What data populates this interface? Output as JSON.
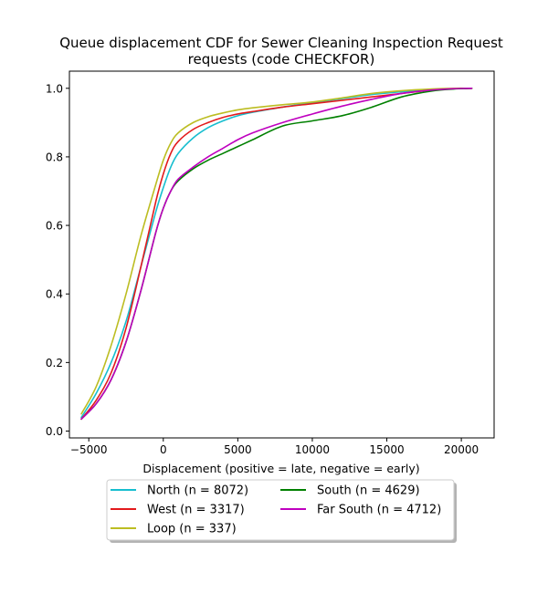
{
  "chart_data": {
    "type": "line",
    "title_lines": [
      "Queue displacement CDF for Sewer Cleaning Inspection Request",
      "requests (code CHECKFOR)"
    ],
    "xlabel": "Displacement (positive = late, negative = early)",
    "ylabel": "",
    "xlim": [
      -6300,
      22200
    ],
    "ylim": [
      -0.02,
      1.05
    ],
    "xticks": [
      -5000,
      0,
      5000,
      10000,
      15000,
      20000
    ],
    "yticks": [
      0.0,
      0.2,
      0.4,
      0.6,
      0.8,
      1.0
    ],
    "xtick_labels": [
      "−5000",
      "0",
      "5000",
      "10000",
      "15000",
      "20000"
    ],
    "ytick_labels": [
      "0.0",
      "0.2",
      "0.4",
      "0.6",
      "0.8",
      "1.0"
    ],
    "grid": false,
    "legend_position": "below plot, two columns",
    "series": [
      {
        "name": "North (n = 8072)",
        "color": "#17becf",
        "x": [
          -5500,
          -4500,
          -3500,
          -2500,
          -1500,
          -500,
          0,
          500,
          1000,
          2000,
          3000,
          4000,
          5000,
          6000,
          8000,
          10000,
          12000,
          14000,
          16000,
          18000,
          19500,
          20700
        ],
        "y": [
          0.04,
          0.11,
          0.2,
          0.32,
          0.48,
          0.64,
          0.71,
          0.77,
          0.81,
          0.855,
          0.885,
          0.905,
          0.92,
          0.93,
          0.945,
          0.958,
          0.97,
          0.982,
          0.99,
          0.996,
          0.999,
          1.0
        ]
      },
      {
        "name": "West (n = 3317)",
        "color": "#e31a1c",
        "x": [
          -5500,
          -4500,
          -3500,
          -2500,
          -1500,
          -500,
          0,
          500,
          1000,
          2000,
          3000,
          4000,
          5000,
          6000,
          8000,
          10000,
          12000,
          14000,
          16000,
          18000,
          19500,
          20700
        ],
        "y": [
          0.035,
          0.09,
          0.17,
          0.3,
          0.48,
          0.67,
          0.75,
          0.81,
          0.845,
          0.88,
          0.9,
          0.915,
          0.925,
          0.932,
          0.945,
          0.955,
          0.965,
          0.975,
          0.985,
          0.995,
          0.999,
          1.0
        ]
      },
      {
        "name": "Loop (n = 337)",
        "color": "#bcbd22",
        "x": [
          -5500,
          -4500,
          -3500,
          -2500,
          -1500,
          -500,
          0,
          500,
          1000,
          2000,
          3000,
          4000,
          5000,
          6000,
          8000,
          10000,
          12000,
          14000,
          16000,
          18000,
          19500,
          20700
        ],
        "y": [
          0.05,
          0.13,
          0.25,
          0.4,
          0.57,
          0.72,
          0.79,
          0.84,
          0.87,
          0.9,
          0.917,
          0.928,
          0.937,
          0.943,
          0.952,
          0.96,
          0.972,
          0.985,
          0.993,
          0.998,
          1.0,
          1.0
        ]
      },
      {
        "name": "South (n = 4629)",
        "color": "#008000",
        "x": [
          -5500,
          -4500,
          -3500,
          -2500,
          -1500,
          -500,
          0,
          500,
          1000,
          2000,
          3000,
          4000,
          5000,
          6000,
          8000,
          10000,
          12000,
          14000,
          16000,
          18000,
          19500,
          20700
        ],
        "y": [
          0.035,
          0.08,
          0.15,
          0.26,
          0.41,
          0.58,
          0.65,
          0.7,
          0.73,
          0.765,
          0.79,
          0.81,
          0.83,
          0.85,
          0.89,
          0.905,
          0.92,
          0.945,
          0.975,
          0.992,
          0.998,
          1.0
        ]
      },
      {
        "name": "Far South (n = 4712)",
        "color": "#bf00bf",
        "x": [
          -5500,
          -4500,
          -3500,
          -2500,
          -1500,
          -500,
          0,
          500,
          1000,
          2000,
          3000,
          4000,
          5000,
          6000,
          8000,
          10000,
          12000,
          14000,
          16000,
          18000,
          19500,
          20700
        ],
        "y": [
          0.035,
          0.08,
          0.15,
          0.26,
          0.41,
          0.58,
          0.65,
          0.7,
          0.735,
          0.77,
          0.8,
          0.825,
          0.85,
          0.87,
          0.9,
          0.925,
          0.948,
          0.968,
          0.985,
          0.995,
          0.999,
          1.0
        ]
      }
    ]
  }
}
